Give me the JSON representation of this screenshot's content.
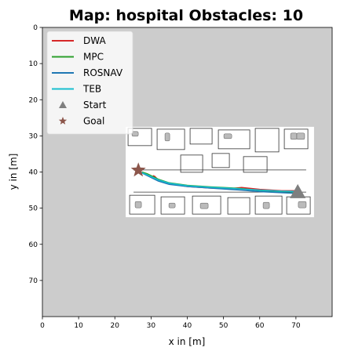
{
  "chart_data": {
    "type": "line",
    "title": "Map: hospital Obstacles: 10",
    "xlabel": "x in [m]",
    "ylabel": "y in [m]",
    "xlim": [
      0,
      80
    ],
    "ylim": [
      80,
      0
    ],
    "x_ticks": [
      0,
      10,
      20,
      30,
      40,
      50,
      60,
      70
    ],
    "y_ticks": [
      0,
      10,
      20,
      30,
      40,
      50,
      60,
      70
    ],
    "grid": false,
    "legend_position": "top-left",
    "background_color": "#cccccc",
    "map_region": {
      "x": [
        23,
        75
      ],
      "y": [
        27.5,
        52.5
      ],
      "color": "#ffffff"
    },
    "series": [
      {
        "name": "DWA",
        "color": "#d62728",
        "x": [
          70.5,
          66,
          60,
          55,
          52,
          46,
          40,
          35,
          32,
          31,
          30.5
        ],
        "y": [
          45.2,
          45.2,
          44.8,
          44.3,
          44.6,
          44.4,
          44,
          43.2,
          42.2,
          41.2,
          41
        ]
      },
      {
        "name": "MPC",
        "color": "#2ca02c",
        "x": [
          70.5,
          66,
          60,
          55,
          52,
          46,
          40,
          35,
          32,
          29,
          27.5
        ],
        "y": [
          45.5,
          45.4,
          45.1,
          44.6,
          44.4,
          44.1,
          43.7,
          43,
          42,
          40.5,
          40
        ]
      },
      {
        "name": "ROSNAV",
        "color": "#1f77b4",
        "x": [
          70.5,
          66,
          60,
          55,
          52,
          46,
          40,
          35,
          32,
          29,
          27
        ],
        "y": [
          45.9,
          45.7,
          45.4,
          45,
          44.8,
          44.4,
          44,
          43.4,
          42.5,
          41,
          40
        ]
      },
      {
        "name": "TEB",
        "color": "#17becf",
        "x": [
          70.5,
          66,
          60,
          55,
          52,
          46,
          40,
          35,
          32,
          29,
          26.5
        ],
        "y": [
          45.4,
          45.3,
          45,
          44.7,
          44.5,
          44.2,
          43.8,
          43.1,
          42.2,
          40.8,
          39.8
        ]
      }
    ],
    "start": {
      "name": "Start",
      "x": 70.5,
      "y": 45.5,
      "color": "#7f7f7f"
    },
    "goal": {
      "name": "Goal",
      "x": 26.5,
      "y": 39.5,
      "color": "#8c564b"
    }
  }
}
